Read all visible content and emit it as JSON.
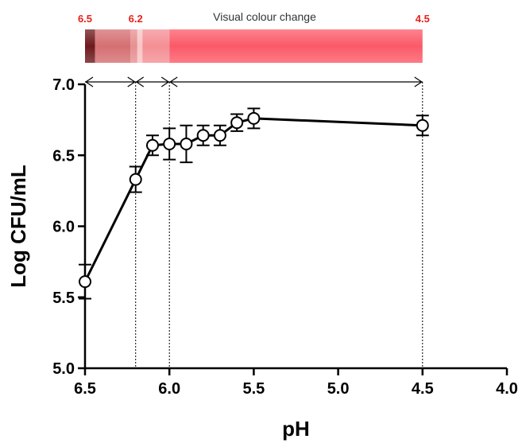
{
  "colour_strip": {
    "title": "Visual colour change",
    "label_color": "#e8201a",
    "ph_labels": [
      {
        "text": "6.5",
        "ph": 6.5
      },
      {
        "text": "6.2",
        "ph": 6.2
      },
      {
        "text": "4.5",
        "ph": 4.5
      }
    ],
    "segments": [
      {
        "from": 6.5,
        "to": 6.44,
        "color": "#6e1a1d"
      },
      {
        "from": 6.44,
        "to": 6.23,
        "color": "#d56f72"
      },
      {
        "from": 6.23,
        "to": 6.19,
        "color": "#e88f91"
      },
      {
        "from": 6.19,
        "to": 6.16,
        "color": "#f7c6c6"
      },
      {
        "from": 6.16,
        "to": 6.0,
        "color": "#f48f95"
      },
      {
        "from": 6.0,
        "to": 4.5,
        "color": "#fb5a68"
      }
    ]
  },
  "chart_data": {
    "type": "line",
    "xlabel": "pH",
    "ylabel": "Log CFU/mL",
    "xlim": [
      6.5,
      4.0
    ],
    "ylim": [
      5.0,
      7.0
    ],
    "x_reversed": true,
    "x_ticks": [
      "6.5",
      "6.0",
      "5.5",
      "5.0",
      "4.5",
      "4.0"
    ],
    "x_tick_values": [
      6.5,
      6.0,
      5.5,
      5.0,
      4.5,
      4.0
    ],
    "y_ticks": [
      "5.0",
      "5.5",
      "6.0",
      "6.5",
      "7.0"
    ],
    "y_tick_values": [
      5.0,
      5.5,
      6.0,
      6.5,
      7.0
    ],
    "grid": false,
    "marker": "open-circle",
    "series": [
      {
        "x": [
          6.5,
          6.2,
          6.1,
          6.0,
          5.9,
          5.8,
          5.7,
          5.6,
          5.5,
          4.5
        ],
        "y": [
          5.61,
          6.33,
          6.57,
          6.58,
          6.58,
          6.64,
          6.64,
          6.73,
          6.76,
          6.71
        ],
        "error": [
          0.12,
          0.09,
          0.07,
          0.11,
          0.13,
          0.07,
          0.07,
          0.06,
          0.07,
          0.07
        ]
      }
    ],
    "annotations": {
      "vertical_lines": [
        6.2,
        6.0,
        4.5
      ],
      "range_arrows": [
        [
          6.5,
          6.2
        ],
        [
          6.2,
          6.0
        ],
        [
          6.0,
          4.5
        ]
      ]
    }
  }
}
